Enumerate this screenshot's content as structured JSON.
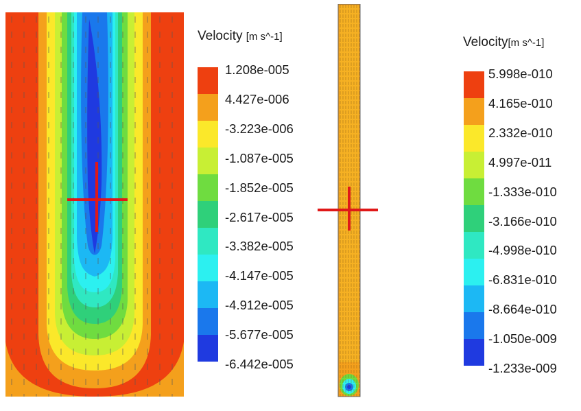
{
  "figure": {
    "left_plot": {
      "description_icon": "contour-plot-velocity-field",
      "marker": "red-crosshair"
    },
    "middle_plot": {
      "description_icon": "contour-plot-narrow-channel",
      "marker": "red-crosshair"
    },
    "legend_left": {
      "title": "Velocity",
      "unit": "[m s^-1]",
      "labels": [
        "1.208e-005",
        "4.427e-006",
        "-3.223e-006",
        "-1.087e-005",
        "-1.852e-005",
        "-2.617e-005",
        "-3.382e-005",
        "-4.147e-005",
        "-4.912e-005",
        "-5.677e-005",
        "-6.442e-005"
      ]
    },
    "legend_right": {
      "title": "Velocity",
      "unit": "[m s^-1]",
      "labels": [
        "5.998e-010",
        "4.165e-010",
        "2.332e-010",
        "4.997e-011",
        "-1.333e-010",
        "-3.166e-010",
        "-4.998e-010",
        "-6.831e-010",
        "-8.664e-010",
        "-1.050e-009",
        "-1.233e-009"
      ]
    },
    "colormap": [
      "#ee4010",
      "#f4a01c",
      "#fbe82a",
      "#c8ef34",
      "#6fdc40",
      "#2fd07a",
      "#2fe8c2",
      "#2cf0f0",
      "#1cb8f4",
      "#1a78ec",
      "#1f3ae0"
    ],
    "crosshair_color": "#e01818"
  }
}
